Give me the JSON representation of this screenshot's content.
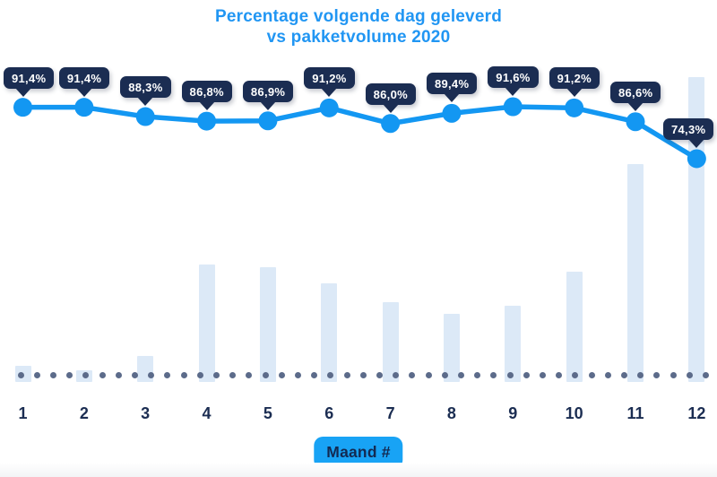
{
  "title": {
    "line1": "Percentage volgende dag geleverd",
    "line2": "vs pakketvolume 2020"
  },
  "x_axis": {
    "tick_labels": [
      "1",
      "2",
      "3",
      "4",
      "5",
      "6",
      "7",
      "8",
      "9",
      "10",
      "11",
      "12"
    ],
    "axis_badge_label": "Maand #"
  },
  "chart_data": {
    "type": "combo-line-bar",
    "title": "Percentage volgende dag geleverd vs pakketvolume 2020",
    "xlabel": "Maand #",
    "categories": [
      1,
      2,
      3,
      4,
      5,
      6,
      7,
      8,
      9,
      10,
      11,
      12
    ],
    "series": [
      {
        "name": "Percentage volgende dag geleverd",
        "type": "line",
        "unit": "%",
        "values": [
          91.4,
          91.4,
          88.3,
          86.8,
          86.9,
          91.2,
          86.0,
          89.4,
          91.6,
          91.2,
          86.6,
          74.3
        ],
        "point_labels": [
          "91,4%",
          "91,4%",
          "88,3%",
          "86,8%",
          "86,9%",
          "91,2%",
          "86,0%",
          "89,4%",
          "91,6%",
          "91,2%",
          "86,6%",
          "74,3%"
        ]
      },
      {
        "name": "Pakketvolume 2020",
        "type": "bar",
        "values_relative_pct_of_max": [
          5.3,
          3.8,
          8.5,
          38.5,
          37.6,
          32.4,
          26.2,
          22.4,
          25.0,
          36.2,
          71.5,
          100
        ],
        "note": "no numeric volume axis shown; bar heights relative to month 12 (max)"
      }
    ],
    "ylim_line_pct": [
      70,
      95
    ],
    "legend": "none",
    "grid": "dotted baseline only"
  },
  "colors": {
    "accent_blue": "#1397F2",
    "title_blue": "#2196F3",
    "badge_blue": "#18A3F5",
    "navy": "#1B2D52",
    "bar_fill": "#DCE9F7",
    "dot_gray": "#5C6B8A",
    "background": "#FFFFFF"
  }
}
